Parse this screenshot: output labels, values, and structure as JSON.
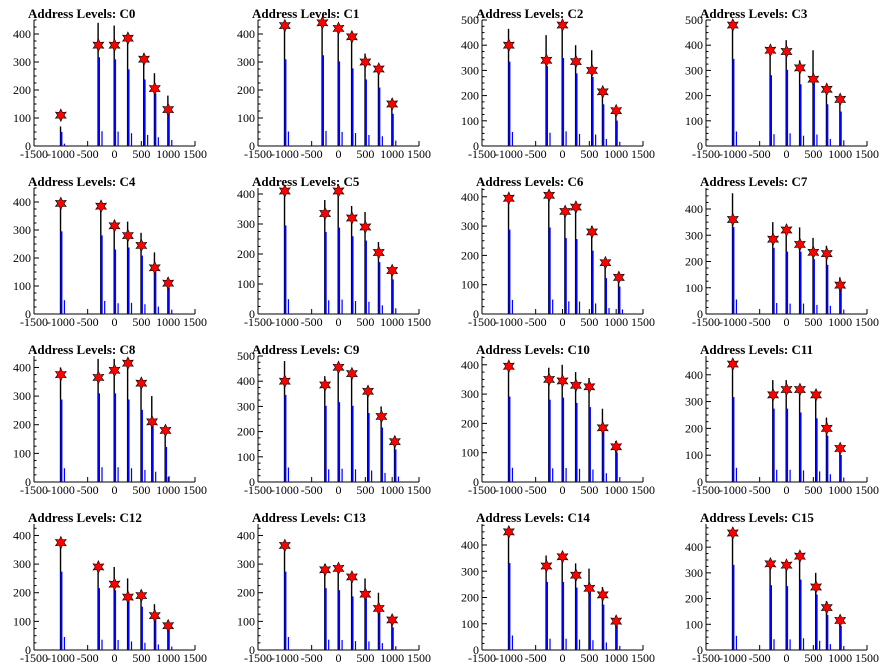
{
  "chart_data": [
    {
      "type": "bar",
      "title": "Address Levels: C0",
      "xlim": [
        -1500,
        1500
      ],
      "ylim": [
        0,
        450
      ],
      "xticks": [
        -1500,
        -1000,
        -500,
        0,
        500,
        1000,
        1500
      ],
      "yticks": [
        0,
        100,
        200,
        300,
        400
      ],
      "ytick_labels": [
        "0",
        "100",
        "200",
        "300",
        "400"
      ],
      "series": [
        {
          "values": [
            [
              -1000,
              70,
              110
            ],
            [
              -300,
              440,
              360
            ],
            [
              0,
              430,
              360
            ],
            [
              250,
              380,
              385
            ],
            [
              550,
              330,
              310
            ],
            [
              750,
              260,
              205
            ],
            [
              1000,
              180,
              130
            ]
          ]
        }
      ]
    },
    {
      "type": "bar",
      "title": "Address Levels: C1",
      "xlim": [
        -1500,
        1500
      ],
      "ylim": [
        0,
        450
      ],
      "xticks": [
        -1500,
        -1000,
        -500,
        0,
        500,
        1000,
        1500
      ],
      "yticks": [
        0,
        100,
        200,
        300,
        400
      ],
      "ytick_labels": [
        "0",
        "100",
        "200",
        "300",
        "400"
      ],
      "series": [
        {
          "values": [
            [
              -1000,
              430,
              430
            ],
            [
              -300,
              450,
              440
            ],
            [
              0,
              420,
              420
            ],
            [
              250,
              385,
              390
            ],
            [
              500,
              330,
              300
            ],
            [
              750,
              290,
              275
            ],
            [
              1000,
              160,
              150
            ]
          ]
        }
      ]
    },
    {
      "type": "bar",
      "title": "Address Levels: C2",
      "xlim": [
        -1500,
        1500
      ],
      "ylim": [
        0,
        500
      ],
      "xticks": [
        -1500,
        -1000,
        -500,
        0,
        500,
        1000,
        1500
      ],
      "yticks": [
        0,
        100,
        200,
        300,
        400,
        500
      ],
      "ytick_labels": [
        "0",
        "100",
        "200",
        "300",
        "400",
        "500"
      ],
      "series": [
        {
          "values": [
            [
              -1000,
              465,
              400
            ],
            [
              -300,
              440,
              340
            ],
            [
              0,
              485,
              480
            ],
            [
              250,
              400,
              335
            ],
            [
              550,
              380,
              300
            ],
            [
              750,
              230,
              215
            ],
            [
              1000,
              140,
              140
            ]
          ]
        }
      ]
    },
    {
      "type": "bar",
      "title": "Address Levels: C3",
      "xlim": [
        -1500,
        1500
      ],
      "ylim": [
        0,
        500
      ],
      "xticks": [
        -1500,
        -1000,
        -500,
        0,
        500,
        1000,
        1500
      ],
      "yticks": [
        0,
        100,
        200,
        300,
        400,
        500
      ],
      "ytick_labels": [
        "0",
        "100",
        "200",
        "300",
        "400",
        "500"
      ],
      "series": [
        {
          "values": [
            [
              -1000,
              480,
              480
            ],
            [
              -300,
              390,
              380
            ],
            [
              0,
              420,
              375
            ],
            [
              250,
              340,
              310
            ],
            [
              500,
              380,
              265
            ],
            [
              750,
              230,
              225
            ],
            [
              1000,
              190,
              185
            ]
          ]
        }
      ]
    },
    {
      "type": "bar",
      "title": "Address Levels: C4",
      "xlim": [
        -1500,
        1500
      ],
      "ylim": [
        0,
        450
      ],
      "xticks": [
        -1500,
        -1000,
        -500,
        0,
        500,
        1000,
        1500
      ],
      "yticks": [
        0,
        100,
        200,
        300,
        400
      ],
      "ytick_labels": [
        "0",
        "100",
        "200",
        "300",
        "400"
      ],
      "series": [
        {
          "values": [
            [
              -1000,
              410,
              395
            ],
            [
              -250,
              390,
              385
            ],
            [
              0,
              320,
              315
            ],
            [
              250,
              330,
              280
            ],
            [
              500,
              290,
              245
            ],
            [
              750,
              220,
              165
            ],
            [
              1000,
              130,
              110
            ]
          ]
        }
      ]
    },
    {
      "type": "bar",
      "title": "Address Levels: C5",
      "xlim": [
        -1500,
        1500
      ],
      "ylim": [
        0,
        420
      ],
      "xticks": [
        -1500,
        -1000,
        -500,
        0,
        500,
        1000,
        1500
      ],
      "yticks": [
        0,
        100,
        200,
        300,
        400
      ],
      "ytick_labels": [
        "0",
        "100",
        "200",
        "300",
        "400"
      ],
      "series": [
        {
          "values": [
            [
              -1000,
              410,
              410
            ],
            [
              -250,
              380,
              335
            ],
            [
              0,
              400,
              410
            ],
            [
              250,
              360,
              320
            ],
            [
              500,
              340,
              290
            ],
            [
              750,
              240,
              205
            ],
            [
              1000,
              160,
              145
            ]
          ]
        }
      ]
    },
    {
      "type": "bar",
      "title": "Address Levels: C6",
      "xlim": [
        -1500,
        1500
      ],
      "ylim": [
        0,
        430
      ],
      "xticks": [
        -1500,
        -1000,
        -500,
        0,
        500,
        1000,
        1500
      ],
      "yticks": [
        0,
        100,
        200,
        300,
        400
      ],
      "ytick_labels": [
        "0",
        "100",
        "200",
        "300",
        "400"
      ],
      "series": [
        {
          "values": [
            [
              -1000,
              400,
              395
            ],
            [
              -250,
              410,
              405
            ],
            [
              50,
              360,
              350
            ],
            [
              250,
              355,
              365
            ],
            [
              550,
              300,
              280
            ],
            [
              800,
              170,
              175
            ],
            [
              1050,
              130,
              125
            ]
          ]
        }
      ]
    },
    {
      "type": "bar",
      "title": "Address Levels: C7",
      "xlim": [
        -1500,
        1500
      ],
      "ylim": [
        0,
        480
      ],
      "xticks": [
        -1500,
        -1000,
        -500,
        0,
        500,
        1000,
        1500
      ],
      "yticks": [
        0,
        100,
        200,
        300,
        400
      ],
      "ytick_labels": [
        "0",
        "100",
        "200",
        "300",
        "400"
      ],
      "series": [
        {
          "values": [
            [
              -1000,
              460,
              360
            ],
            [
              -250,
              350,
              285
            ],
            [
              0,
              330,
              320
            ],
            [
              250,
              330,
              265
            ],
            [
              500,
              290,
              235
            ],
            [
              750,
              260,
              230
            ],
            [
              1000,
              140,
              110
            ]
          ]
        }
      ]
    },
    {
      "type": "bar",
      "title": "Address Levels: C8",
      "xlim": [
        -1500,
        1500
      ],
      "ylim": [
        0,
        440
      ],
      "xticks": [
        -1500,
        -1000,
        -500,
        0,
        500,
        1000,
        1500
      ],
      "yticks": [
        0,
        100,
        200,
        300,
        400
      ],
      "ytick_labels": [
        "0",
        "100",
        "200",
        "300",
        "400"
      ],
      "series": [
        {
          "values": [
            [
              -1000,
              400,
              375
            ],
            [
              -300,
              430,
              365
            ],
            [
              0,
              430,
              390
            ],
            [
              250,
              400,
              415
            ],
            [
              500,
              350,
              345
            ],
            [
              700,
              300,
              210
            ],
            [
              950,
              170,
              180
            ]
          ]
        }
      ]
    },
    {
      "type": "bar",
      "title": "Address Levels: C9",
      "xlim": [
        -1500,
        1500
      ],
      "ylim": [
        0,
        500
      ],
      "xticks": [
        -1500,
        -1000,
        -500,
        0,
        500,
        1000,
        1500
      ],
      "yticks": [
        0,
        100,
        200,
        300,
        400,
        500
      ],
      "ytick_labels": [
        "0",
        "100",
        "200",
        "300",
        "400",
        "500"
      ],
      "series": [
        {
          "values": [
            [
              -1000,
              480,
              400
            ],
            [
              -250,
              420,
              385
            ],
            [
              0,
              440,
              455
            ],
            [
              250,
              420,
              430
            ],
            [
              550,
              380,
              360
            ],
            [
              800,
              300,
              260
            ],
            [
              1050,
              180,
              160
            ]
          ]
        }
      ]
    },
    {
      "type": "bar",
      "title": "Address Levels: C10",
      "xlim": [
        -1500,
        1500
      ],
      "ylim": [
        0,
        430
      ],
      "xticks": [
        -1500,
        -1000,
        -500,
        0,
        500,
        1000,
        1500
      ],
      "yticks": [
        0,
        100,
        200,
        300,
        400
      ],
      "ytick_labels": [
        "0",
        "100",
        "200",
        "300",
        "400"
      ],
      "series": [
        {
          "values": [
            [
              -1000,
              405,
              395
            ],
            [
              -250,
              390,
              350
            ],
            [
              0,
              400,
              345
            ],
            [
              250,
              375,
              330
            ],
            [
              500,
              355,
              325
            ],
            [
              750,
              250,
              185
            ],
            [
              1000,
              140,
              120
            ]
          ]
        }
      ]
    },
    {
      "type": "bar",
      "title": "Address Levels: C11",
      "xlim": [
        -1500,
        1500
      ],
      "ylim": [
        0,
        470
      ],
      "xticks": [
        -1500,
        -1000,
        -500,
        0,
        500,
        1000,
        1500
      ],
      "yticks": [
        0,
        100,
        200,
        300,
        400
      ],
      "ytick_labels": [
        "0",
        "100",
        "200",
        "300",
        "400"
      ],
      "series": [
        {
          "values": [
            [
              -1000,
              440,
              440
            ],
            [
              -250,
              380,
              325
            ],
            [
              0,
              380,
              345
            ],
            [
              250,
              360,
              345
            ],
            [
              550,
              330,
              325
            ],
            [
              750,
              240,
              200
            ],
            [
              1000,
              140,
              125
            ]
          ]
        }
      ]
    },
    {
      "type": "bar",
      "title": "Address Levels: C12",
      "xlim": [
        -1500,
        1500
      ],
      "ylim": [
        0,
        440
      ],
      "xticks": [
        -1500,
        -1000,
        -500,
        0,
        500,
        1000,
        1500
      ],
      "yticks": [
        0,
        100,
        200,
        300,
        400
      ],
      "ytick_labels": [
        "0",
        "100",
        "200",
        "300",
        "400"
      ],
      "series": [
        {
          "values": [
            [
              -1000,
              380,
              375
            ],
            [
              -300,
              300,
              290
            ],
            [
              0,
              290,
              230
            ],
            [
              250,
              250,
              185
            ],
            [
              500,
              210,
              190
            ],
            [
              750,
              160,
              120
            ],
            [
              1000,
              100,
              85
            ]
          ]
        }
      ]
    },
    {
      "type": "bar",
      "title": "Address Levels: C13",
      "xlim": [
        -1500,
        1500
      ],
      "ylim": [
        0,
        440
      ],
      "xticks": [
        -1500,
        -1000,
        -500,
        0,
        500,
        1000,
        1500
      ],
      "yticks": [
        0,
        100,
        200,
        300,
        400
      ],
      "ytick_labels": [
        "0",
        "100",
        "200",
        "300",
        "400"
      ],
      "series": [
        {
          "values": [
            [
              -1000,
              380,
              365
            ],
            [
              -250,
              300,
              280
            ],
            [
              0,
              290,
              285
            ],
            [
              250,
              260,
              255
            ],
            [
              500,
              250,
              195
            ],
            [
              750,
              200,
              145
            ],
            [
              1000,
              110,
              105
            ]
          ]
        }
      ]
    },
    {
      "type": "bar",
      "title": "Address Levels: C14",
      "xlim": [
        -1500,
        1500
      ],
      "ylim": [
        0,
        480
      ],
      "xticks": [
        -1500,
        -1000,
        -500,
        0,
        500,
        1000,
        1500
      ],
      "yticks": [
        0,
        100,
        200,
        300,
        400
      ],
      "ytick_labels": [
        "0",
        "100",
        "200",
        "300",
        "400"
      ],
      "series": [
        {
          "values": [
            [
              -1000,
              460,
              450
            ],
            [
              -300,
              360,
              320
            ],
            [
              0,
              360,
              355
            ],
            [
              250,
              330,
              285
            ],
            [
              500,
              310,
              235
            ],
            [
              750,
              240,
              210
            ],
            [
              1000,
              130,
              110
            ]
          ]
        }
      ]
    },
    {
      "type": "bar",
      "title": "Address Levels: C15",
      "xlim": [
        -1500,
        1500
      ],
      "ylim": [
        0,
        490
      ],
      "xticks": [
        -1500,
        -1000,
        -500,
        0,
        500,
        1000,
        1500
      ],
      "yticks": [
        0,
        100,
        200,
        300,
        400
      ],
      "ytick_labels": [
        "0",
        "100",
        "200",
        "300",
        "400"
      ],
      "series": [
        {
          "values": [
            [
              -1000,
              460,
              455
            ],
            [
              -300,
              350,
              335
            ],
            [
              0,
              345,
              330
            ],
            [
              250,
              380,
              365
            ],
            [
              550,
              300,
              245
            ],
            [
              750,
              190,
              165
            ],
            [
              1000,
              130,
              115
            ]
          ]
        }
      ]
    }
  ],
  "colors": {
    "primary_bar": "#0000ff",
    "secondary_bar": "#000000",
    "marker_fill": "#ff0000",
    "marker_stroke": "#000000",
    "axis": "#000000"
  }
}
